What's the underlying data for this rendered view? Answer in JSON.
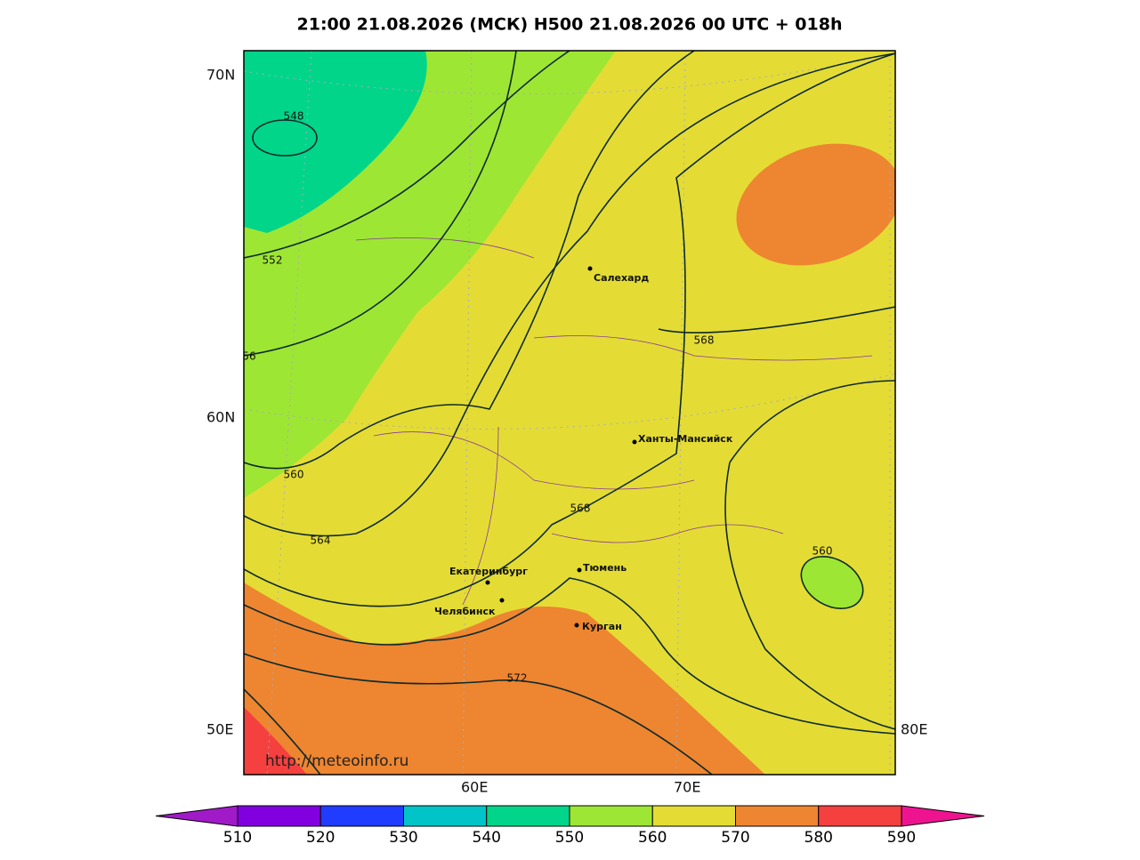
{
  "title": "21:00 21.08.2026 (МСК) H500  21.08.2026 00 UTC + 018h",
  "geo_labels": [
    "70N",
    "60N",
    "50E",
    "80E",
    "60E",
    "70E"
  ],
  "cities": [
    "Салехард",
    "Ханты-Мансийск",
    "Екатеринбург",
    "Тюмень",
    "Челябинск",
    "Курган"
  ],
  "contour_labels": [
    "548",
    "552",
    "56",
    "560",
    "564",
    "568",
    "568",
    "572",
    "560"
  ],
  "url": "http://meteoinfo.ru",
  "colorbar": {
    "labels": [
      510,
      520,
      530,
      540,
      550,
      560,
      570,
      580,
      590
    ],
    "colors": [
      "#a11ac8",
      "#8200e0",
      "#1f3cff",
      "#00c4c8",
      "#00d58a",
      "#9ee634",
      "#e4dc34",
      "#ee8530",
      "#f4403f",
      "#ee1490"
    ]
  }
}
